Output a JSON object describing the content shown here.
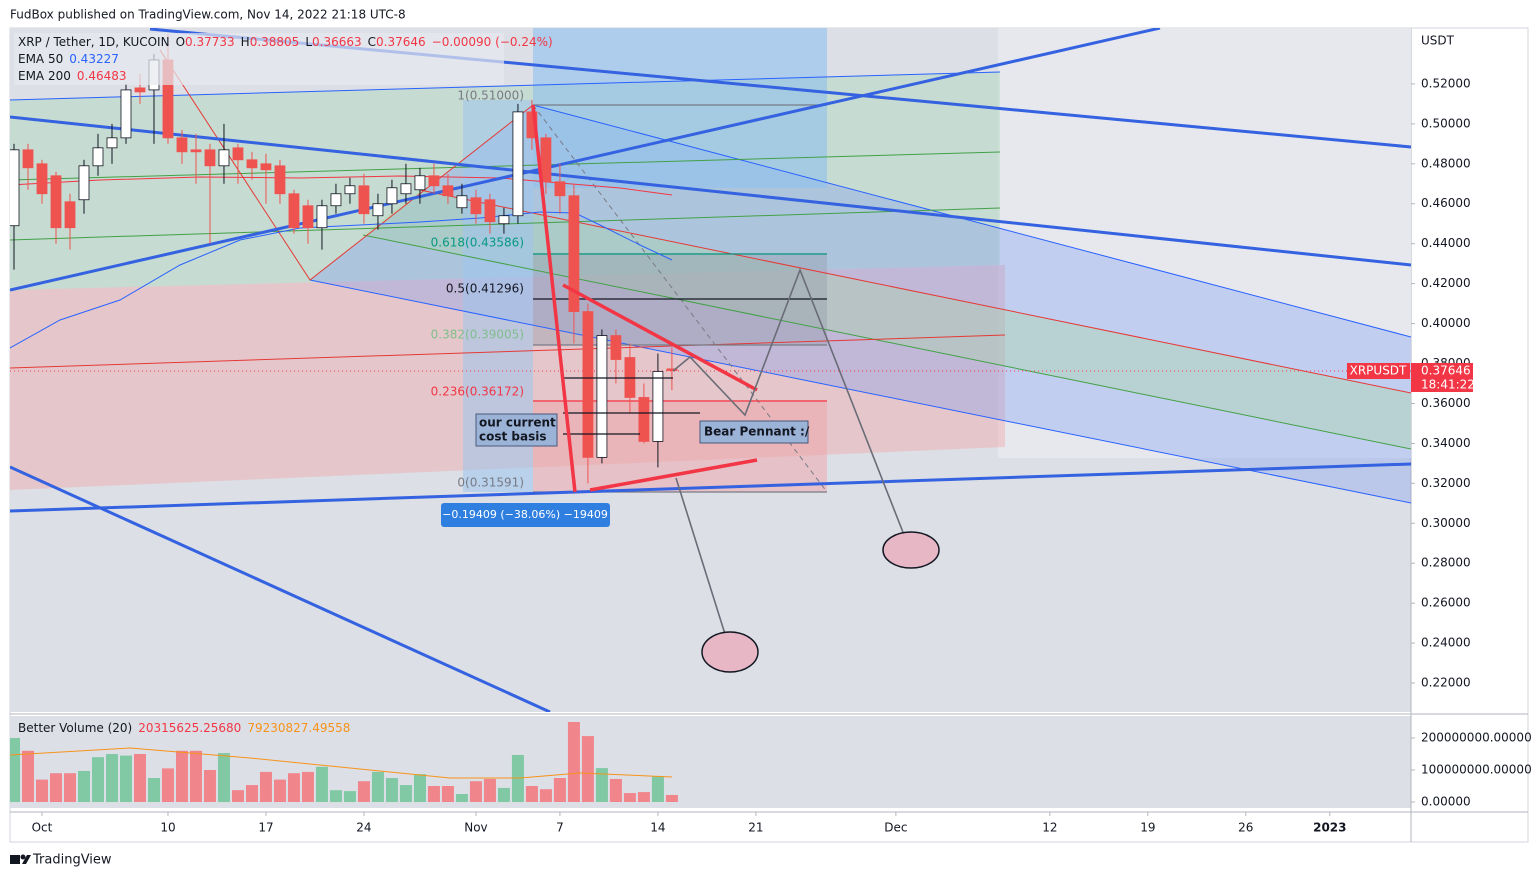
{
  "header": {
    "publisher": "FudBox published on TradingView.com, Nov 14, 2022 21:18 UTC-8"
  },
  "footer": {
    "brand": "TradingView"
  },
  "chart_data": {
    "type": "candlestick",
    "title": "XRP / Tether, 1D, KUCOIN",
    "currency": "USDT",
    "legend": {
      "keys": [
        "O",
        "H",
        "L",
        "C"
      ],
      "values": [
        0.37733,
        0.38805,
        0.36663,
        0.37646
      ],
      "change": "−0.00090 (−0.24%)"
    },
    "indicators": [
      {
        "name": "EMA 50",
        "value": 0.43227,
        "color": "#2962ff"
      },
      {
        "name": "EMA 200",
        "value": 0.46483,
        "color": "#f23645"
      }
    ],
    "x": [
      -2,
      -1,
      0,
      1,
      2,
      3,
      4,
      5,
      6,
      7,
      8,
      9,
      10,
      11,
      12,
      13,
      14,
      15,
      16,
      17,
      18,
      19,
      20,
      21,
      22,
      23,
      24,
      25,
      26,
      27,
      28,
      29,
      30,
      31,
      32,
      33,
      34,
      35,
      36,
      37,
      38,
      39,
      40,
      41,
      42,
      43,
      44,
      45
    ],
    "open": [
      0.449,
      0.487,
      0.48,
      0.474,
      0.461,
      0.462,
      0.479,
      0.488,
      0.493,
      0.518,
      0.517,
      0.532,
      0.493,
      0.487,
      0.487,
      0.479,
      0.488,
      0.482,
      0.48,
      0.479,
      0.465,
      0.459,
      0.448,
      0.459,
      0.465,
      0.469,
      0.454,
      0.46,
      0.465,
      0.467,
      0.474,
      0.469,
      0.458,
      0.463,
      0.462,
      0.45,
      0.454,
      0.506,
      0.493,
      0.471,
      0.464,
      0.406,
      0.333,
      0.394,
      0.383,
      0.363,
      0.341,
      0.37733
    ],
    "high": [
      0.49,
      0.49,
      0.482,
      0.476,
      0.465,
      0.482,
      0.495,
      0.5,
      0.52,
      0.525,
      0.535,
      0.545,
      0.497,
      0.495,
      0.49,
      0.5,
      0.49,
      0.486,
      0.485,
      0.482,
      0.467,
      0.462,
      0.462,
      0.47,
      0.473,
      0.475,
      0.465,
      0.472,
      0.48,
      0.478,
      0.48,
      0.475,
      0.47,
      0.467,
      0.465,
      0.458,
      0.51,
      0.512,
      0.495,
      0.48,
      0.47,
      0.41,
      0.397,
      0.397,
      0.39,
      0.37,
      0.385,
      0.38805
    ],
    "low": [
      0.427,
      0.467,
      0.46,
      0.44,
      0.437,
      0.455,
      0.474,
      0.48,
      0.49,
      0.51,
      0.49,
      0.49,
      0.48,
      0.47,
      0.44,
      0.47,
      0.47,
      0.472,
      0.46,
      0.46,
      0.445,
      0.44,
      0.437,
      0.455,
      0.46,
      0.45,
      0.447,
      0.455,
      0.46,
      0.46,
      0.465,
      0.46,
      0.455,
      0.45,
      0.445,
      0.445,
      0.45,
      0.487,
      0.465,
      0.455,
      0.39,
      0.32,
      0.33,
      0.37,
      0.355,
      0.34,
      0.328,
      0.36663
    ],
    "close": [
      0.487,
      0.478,
      0.465,
      0.448,
      0.448,
      0.479,
      0.488,
      0.493,
      0.517,
      0.516,
      0.532,
      0.493,
      0.486,
      0.486,
      0.479,
      0.487,
      0.482,
      0.478,
      0.477,
      0.465,
      0.448,
      0.448,
      0.459,
      0.465,
      0.469,
      0.455,
      0.46,
      0.468,
      0.47,
      0.474,
      0.469,
      0.464,
      0.464,
      0.455,
      0.451,
      0.454,
      0.506,
      0.493,
      0.471,
      0.464,
      0.406,
      0.333,
      0.394,
      0.382,
      0.363,
      0.341,
      0.376,
      0.37646
    ],
    "up_color": "#ffffff",
    "down_color": "#ef5350",
    "xlim": [
      -2.286,
      97.8
    ],
    "xticks": [
      {
        "value": 0,
        "label": "Oct"
      },
      {
        "value": 9,
        "label": "10"
      },
      {
        "value": 16,
        "label": "17"
      },
      {
        "value": 23,
        "label": "24"
      },
      {
        "value": 31,
        "label": "Nov"
      },
      {
        "value": 37,
        "label": "7"
      },
      {
        "value": 44,
        "label": "14"
      },
      {
        "value": 51,
        "label": "21"
      },
      {
        "value": 61,
        "label": "Dec"
      },
      {
        "value": 72,
        "label": "12"
      },
      {
        "value": 79,
        "label": "19"
      },
      {
        "value": 86,
        "label": "26"
      },
      {
        "value": 92,
        "label": "2023"
      }
    ],
    "ylim": [
      0.2055,
      0.548
    ],
    "yticks": [
      {
        "value": 0.22,
        "label": "0.22000"
      },
      {
        "value": 0.24,
        "label": "0.24000"
      },
      {
        "value": 0.26,
        "label": "0.26000"
      },
      {
        "value": 0.28,
        "label": "0.28000"
      },
      {
        "value": 0.3,
        "label": "0.30000"
      },
      {
        "value": 0.32,
        "label": "0.32000"
      },
      {
        "value": 0.34,
        "label": "0.34000"
      },
      {
        "value": 0.36,
        "label": "0.36000"
      },
      {
        "value": 0.38,
        "label": "0.38000"
      },
      {
        "value": 0.4,
        "label": "0.40000"
      },
      {
        "value": 0.42,
        "label": "0.42000"
      },
      {
        "value": 0.44,
        "label": "0.44000"
      },
      {
        "value": 0.46,
        "label": "0.46000"
      },
      {
        "value": 0.48,
        "label": "0.48000"
      },
      {
        "value": 0.5,
        "label": "0.50000"
      },
      {
        "value": 0.52,
        "label": "0.52000"
      }
    ],
    "last_price": {
      "symbol": "XRPUSDT",
      "value": 0.37646,
      "countdown": "18:41:22"
    },
    "volume": {
      "title": "Better Volume (20)",
      "legend": [
        "20315625.25680",
        "79230827.49558"
      ],
      "values": [
        200000000,
        160000000,
        70000000,
        90000000,
        90000000,
        97000000,
        140000000,
        150000000,
        145000000,
        150000000,
        75000000,
        105000000,
        160000000,
        160000000,
        100000000,
        153000000,
        37000000,
        53000000,
        94000000,
        70000000,
        90000000,
        94000000,
        110000000,
        37000000,
        34000000,
        65000000,
        94000000,
        75000000,
        53000000,
        87000000,
        50000000,
        50000000,
        25000000,
        65000000,
        72000000,
        44000000,
        147000000,
        50000000,
        40000000,
        75000000,
        250000000,
        206000000,
        106000000,
        72000000,
        28000000,
        31000000,
        81000000,
        22000000
      ],
      "ylim": [
        -18750000,
        268750000
      ],
      "yticks": [
        {
          "value": 0,
          "label": "0.00000"
        },
        {
          "value": 100000000,
          "label": "100000000.00000"
        },
        {
          "value": 200000000,
          "label": "200000000.00000"
        }
      ],
      "up_color": "#80c9a4",
      "down_color": "#f0868c"
    },
    "annotations": {
      "fib": [
        "1(0.51000)",
        "0.618(0.43586)",
        "0.5(0.41296)",
        "0.382(0.39005)",
        "0.236(0.36172)",
        "0(0.31591)"
      ],
      "measure": "−0.19409 (−38.06%) −19409",
      "cost_basis": [
        "our current",
        "cost basis"
      ],
      "pattern": "Bear Pennant :/"
    }
  }
}
